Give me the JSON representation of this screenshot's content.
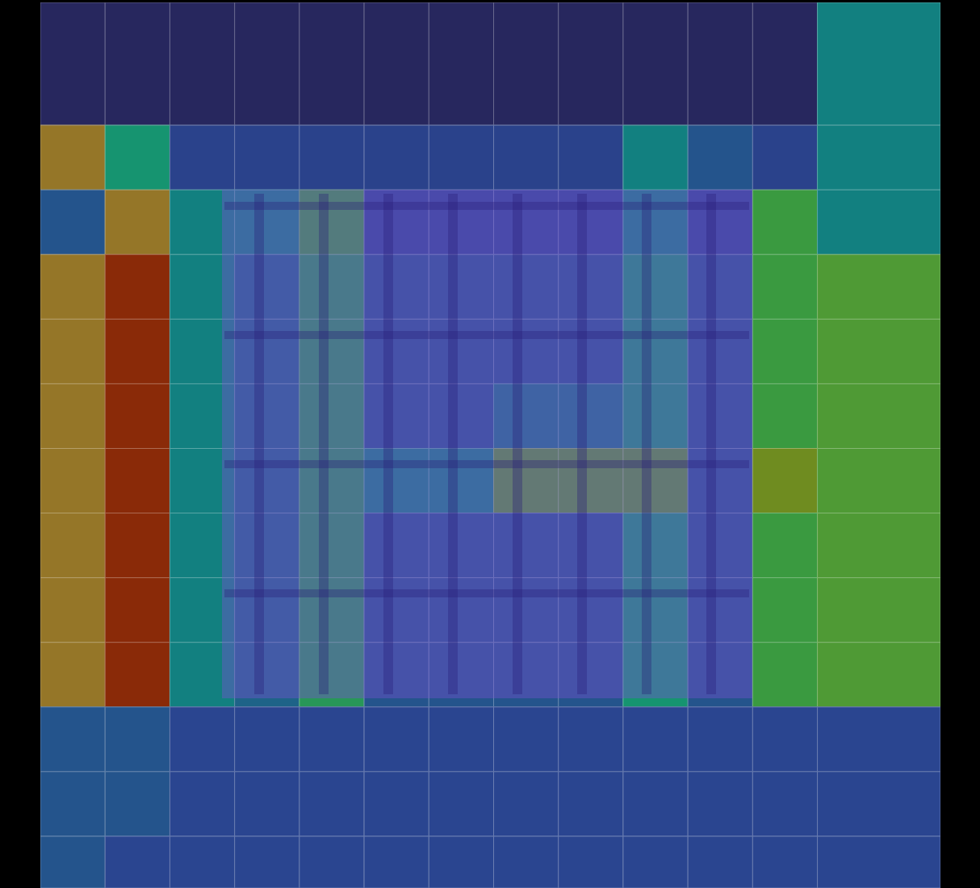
{
  "chart_data": {
    "type": "heatmap",
    "tick_labels": false,
    "grid": true,
    "xlim": [
      0,
      13.9
    ],
    "ylim": [
      0,
      13.7
    ],
    "x_edges": [
      0,
      1,
      2,
      3,
      4,
      5,
      6,
      7,
      8,
      9,
      10,
      11,
      12,
      13.9
    ],
    "y_edges": [
      0,
      1.9,
      2.9,
      3.9,
      4.9,
      5.9,
      6.9,
      7.9,
      8.9,
      9.9,
      10.9,
      11.9,
      12.9,
      13.7
    ],
    "color_range": [
      0,
      1
    ],
    "cells": [
      [
        0,
        0,
        0,
        0,
        0,
        0,
        0,
        0,
        0,
        0,
        0,
        0,
        0.4
      ],
      [
        0.82,
        0.45,
        0.18,
        0.18,
        0.18,
        0.18,
        0.18,
        0.18,
        0.18,
        0.4,
        0.25,
        0.18,
        0.4
      ],
      [
        0.25,
        0.82,
        0.4,
        0.4,
        0.55,
        0.2,
        0.2,
        0.2,
        0.2,
        0.4,
        0.2,
        0.55,
        0.4
      ],
      [
        0.82,
        1,
        0.4,
        0.3,
        0.5,
        0.25,
        0.25,
        0.25,
        0.25,
        0.45,
        0.25,
        0.55,
        0.6
      ],
      [
        0.82,
        1,
        0.4,
        0.3,
        0.5,
        0.25,
        0.25,
        0.25,
        0.25,
        0.45,
        0.25,
        0.55,
        0.6
      ],
      [
        0.82,
        1,
        0.4,
        0.3,
        0.5,
        0.25,
        0.25,
        0.35,
        0.35,
        0.45,
        0.25,
        0.55,
        0.6
      ],
      [
        0.82,
        1,
        0.4,
        0.3,
        0.5,
        0.4,
        0.4,
        0.62,
        0.62,
        0.62,
        0.25,
        0.7,
        0.6
      ],
      [
        0.82,
        1,
        0.4,
        0.3,
        0.5,
        0.25,
        0.25,
        0.25,
        0.25,
        0.45,
        0.25,
        0.55,
        0.6
      ],
      [
        0.82,
        1,
        0.4,
        0.3,
        0.5,
        0.25,
        0.25,
        0.25,
        0.25,
        0.45,
        0.25,
        0.55,
        0.6
      ],
      [
        0.82,
        1,
        0.4,
        0.3,
        0.5,
        0.25,
        0.25,
        0.25,
        0.25,
        0.45,
        0.25,
        0.55,
        0.6
      ],
      [
        0.25,
        0.25,
        0.2,
        0.2,
        0.2,
        0.2,
        0.2,
        0.2,
        0.2,
        0.2,
        0.2,
        0.2,
        0.2
      ],
      [
        0.25,
        0.25,
        0.2,
        0.2,
        0.2,
        0.2,
        0.2,
        0.2,
        0.2,
        0.2,
        0.2,
        0.2,
        0.2
      ],
      [
        0.25,
        0.2,
        0.2,
        0.2,
        0.2,
        0.2,
        0.2,
        0.2,
        0.2,
        0.2,
        0.2,
        0.2,
        0.2
      ]
    ]
  }
}
